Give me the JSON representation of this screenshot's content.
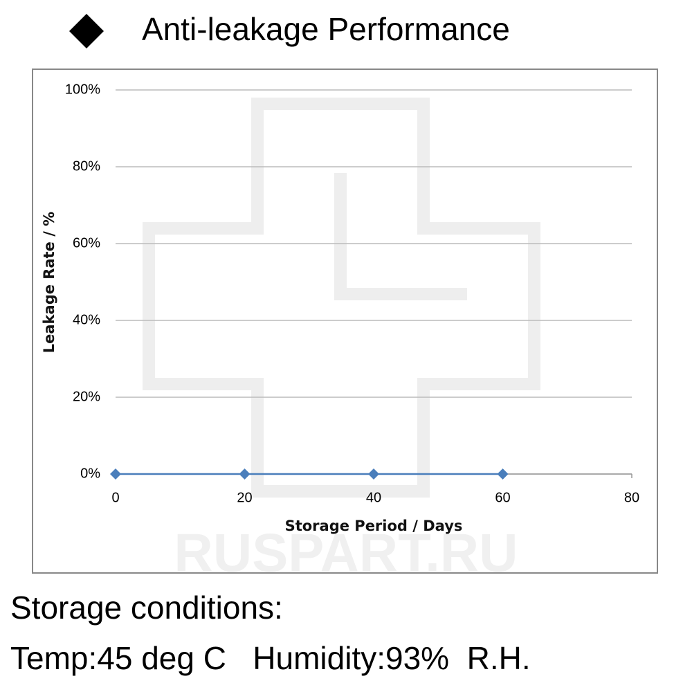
{
  "chart_data": {
    "type": "line",
    "title": "Anti-leakage Performance",
    "x_label": "Storage Period / Days",
    "y_label": "Leakage Rate / %",
    "x": [
      0,
      20,
      40,
      60
    ],
    "series": [
      {
        "name": "Leakage Rate",
        "color": "#4a7ebb",
        "values": [
          0,
          0,
          0,
          0
        ]
      }
    ],
    "xlim": [
      0,
      80
    ],
    "xticks": [
      0,
      20,
      40,
      60,
      80
    ],
    "ylim": [
      0,
      100
    ],
    "yticks": [
      {
        "value": 0,
        "label": "0%"
      },
      {
        "value": 20,
        "label": "20%"
      },
      {
        "value": 40,
        "label": "40%"
      },
      {
        "value": 60,
        "label": "60%"
      },
      {
        "value": 80,
        "label": "80%"
      },
      {
        "value": 100,
        "label": "100%"
      }
    ],
    "grid": true,
    "watermark": "RUSPART.RU",
    "notes": [
      "Storage conditions:",
      "Temp:45 deg C   Humidity:93%  R.H."
    ]
  }
}
